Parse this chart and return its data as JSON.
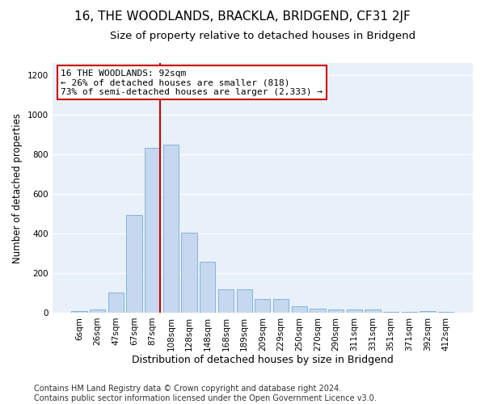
{
  "title": "16, THE WOODLANDS, BRACKLA, BRIDGEND, CF31 2JF",
  "subtitle": "Size of property relative to detached houses in Bridgend",
  "xlabel": "Distribution of detached houses by size in Bridgend",
  "ylabel": "Number of detached properties",
  "footer_line1": "Contains HM Land Registry data © Crown copyright and database right 2024.",
  "footer_line2": "Contains public sector information licensed under the Open Government Licence v3.0.",
  "bar_labels": [
    "6sqm",
    "26sqm",
    "47sqm",
    "67sqm",
    "87sqm",
    "108sqm",
    "128sqm",
    "148sqm",
    "168sqm",
    "189sqm",
    "209sqm",
    "229sqm",
    "250sqm",
    "270sqm",
    "290sqm",
    "311sqm",
    "331sqm",
    "351sqm",
    "371sqm",
    "392sqm",
    "412sqm"
  ],
  "bar_values": [
    10,
    15,
    100,
    495,
    830,
    850,
    405,
    255,
    120,
    120,
    68,
    68,
    32,
    22,
    15,
    15,
    15,
    3,
    3,
    10,
    3
  ],
  "bar_color": "#c5d8f0",
  "bar_edge_color": "#7aadd4",
  "background_color": "#e8f0fa",
  "grid_color": "#ffffff",
  "annotation_text": "16 THE WOODLANDS: 92sqm\n← 26% of detached houses are smaller (818)\n73% of semi-detached houses are larger (2,333) →",
  "vline_color": "#cc0000",
  "annotation_box_edgecolor": "#cc0000",
  "ylim": [
    0,
    1260
  ],
  "yticks": [
    0,
    200,
    400,
    600,
    800,
    1000,
    1200
  ],
  "title_fontsize": 11,
  "subtitle_fontsize": 9.5,
  "xlabel_fontsize": 9,
  "ylabel_fontsize": 8.5,
  "tick_fontsize": 7.5,
  "annotation_fontsize": 8,
  "footer_fontsize": 7
}
